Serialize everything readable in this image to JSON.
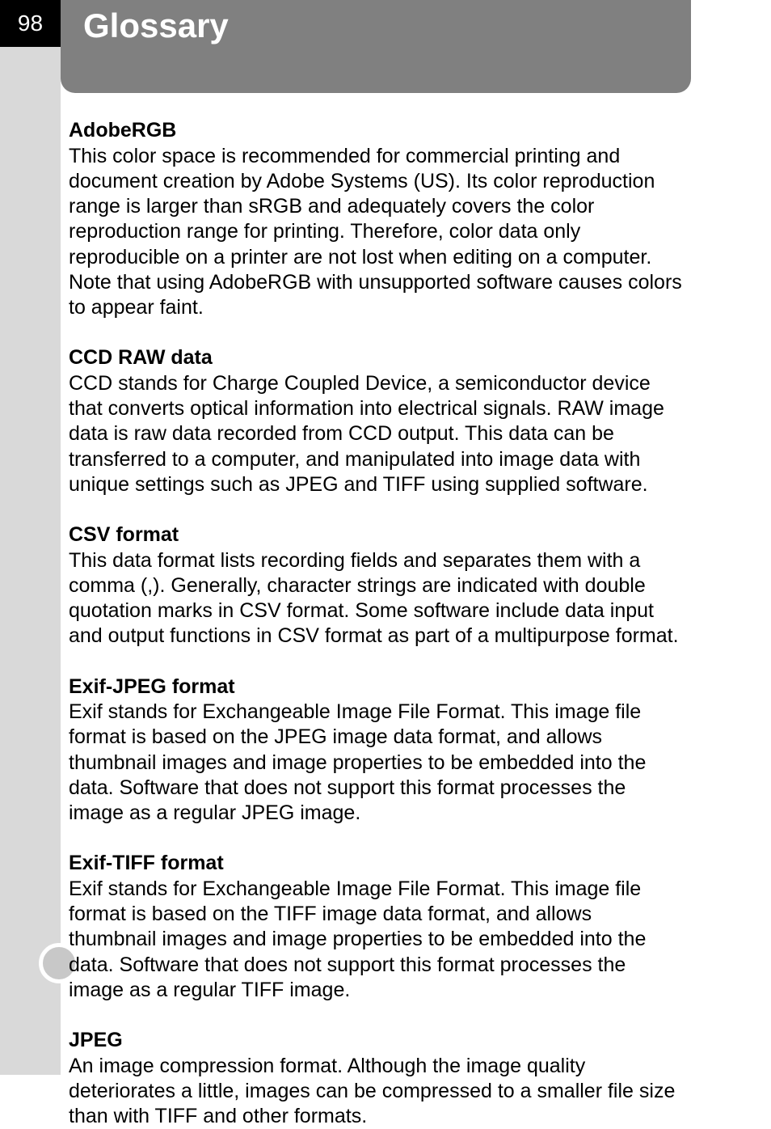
{
  "page_number": "98",
  "title": "Glossary",
  "entries": [
    {
      "term": "AdobeRGB",
      "definition": "This color space is recommended for commercial printing and document creation by Adobe Systems (US). Its color reproduction range is larger than sRGB and adequately covers the color reproduction range for printing. Therefore, color data only reproducible on a printer are not lost when editing on a computer. Note that using AdobeRGB with unsupported software causes colors to appear faint."
    },
    {
      "term": "CCD RAW data",
      "definition": "CCD stands for Charge Coupled Device, a semiconductor device that converts optical information into electrical signals. RAW image data is raw data recorded from CCD output. This data can be transferred to a computer, and manipulated into image data with unique settings such as JPEG and TIFF using supplied software."
    },
    {
      "term": "CSV format",
      "definition": "This data format lists recording fields and separates them with a comma (,). Generally, character strings are indicated with double quotation marks in CSV format. Some software include data input and output functions in CSV format as part of a multipurpose format."
    },
    {
      "term": "Exif-JPEG format",
      "definition": "Exif stands for Exchangeable Image File Format. This image file format is based on the JPEG image data format, and allows thumbnail images and image properties to be embedded into the data. Software that does not support this format processes the image as a regular JPEG image."
    },
    {
      "term": "Exif-TIFF format",
      "definition": "Exif stands for Exchangeable Image File Format. This image file format is based on the TIFF image data format, and allows thumbnail images and image properties to be embedded into the data. Software that does not support this format processes the image as a regular TIFF image."
    },
    {
      "term": "JPEG",
      "definition": "An image compression format. Although the image quality deteriorates a little, images can be compressed to a smaller file size than with TIFF and other formats."
    }
  ]
}
